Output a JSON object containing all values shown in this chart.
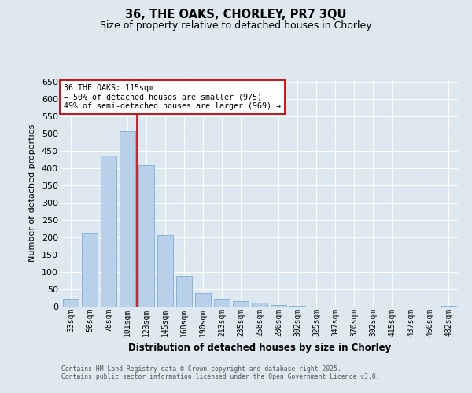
{
  "title1": "36, THE OAKS, CHORLEY, PR7 3QU",
  "title2": "Size of property relative to detached houses in Chorley",
  "xlabel": "Distribution of detached houses by size in Chorley",
  "ylabel": "Number of detached properties",
  "bar_labels": [
    "33sqm",
    "56sqm",
    "78sqm",
    "101sqm",
    "123sqm",
    "145sqm",
    "168sqm",
    "190sqm",
    "213sqm",
    "235sqm",
    "258sqm",
    "280sqm",
    "302sqm",
    "325sqm",
    "347sqm",
    "370sqm",
    "392sqm",
    "415sqm",
    "437sqm",
    "460sqm",
    "482sqm"
  ],
  "bar_values": [
    20,
    212,
    437,
    507,
    410,
    206,
    88,
    38,
    20,
    16,
    12,
    5,
    3,
    1,
    1,
    0,
    0,
    0,
    0,
    0,
    2
  ],
  "bar_color": "#b8d0ea",
  "bar_edge_color": "#7aadd4",
  "bg_color": "#dde8f0",
  "grid_color": "#ffffff",
  "vline_x": 3.5,
  "vline_color": "#cc0000",
  "annotation_title": "36 THE OAKS: 115sqm",
  "annotation_line1": "← 50% of detached houses are smaller (975)",
  "annotation_line2": "49% of semi-detached houses are larger (969) →",
  "annotation_box_facecolor": "#ffffff",
  "annotation_box_edge": "#cc0000",
  "ylim": [
    0,
    660
  ],
  "yticks": [
    0,
    50,
    100,
    150,
    200,
    250,
    300,
    350,
    400,
    450,
    500,
    550,
    600,
    650
  ],
  "footnote1": "Contains HM Land Registry data © Crown copyright and database right 2025.",
  "footnote2": "Contains public sector information licensed under the Open Government Licence v3.0."
}
